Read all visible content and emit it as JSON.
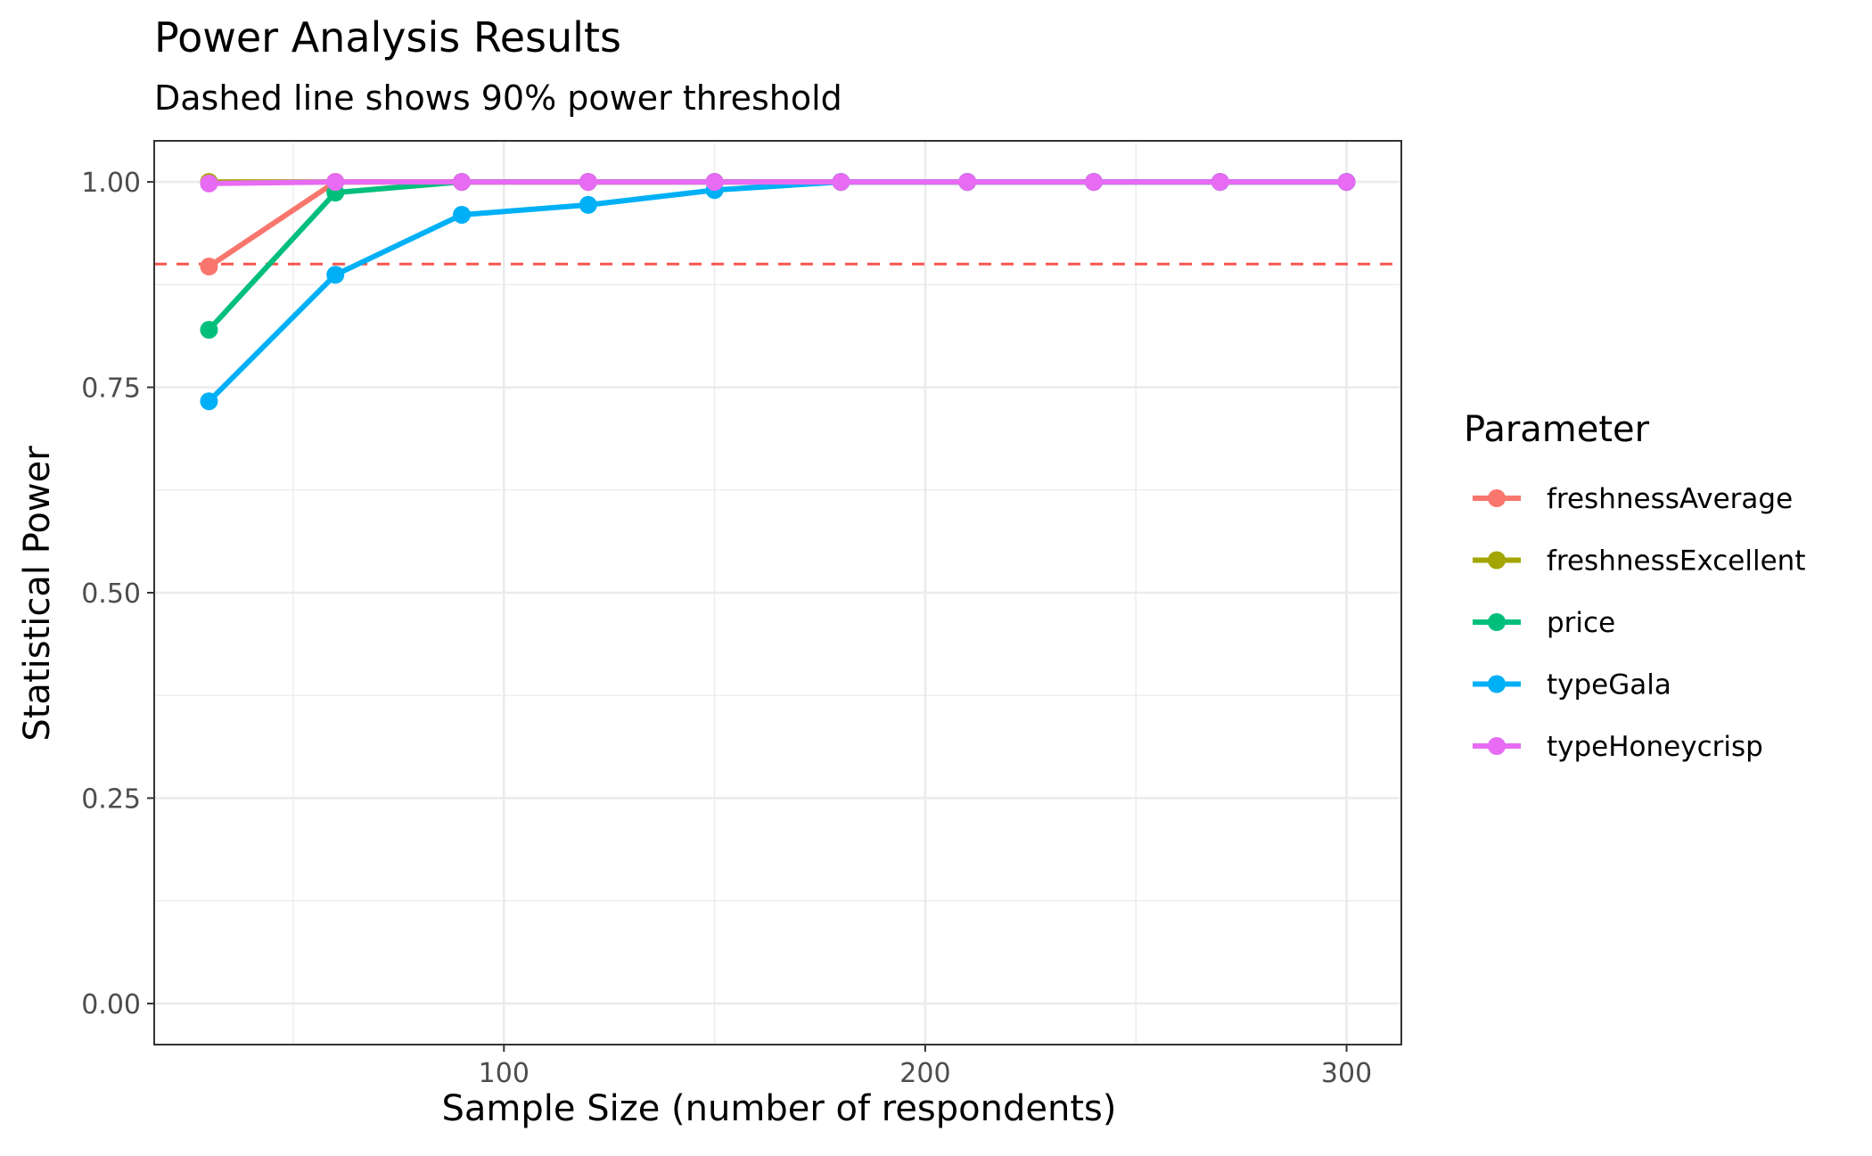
{
  "chart_data": {
    "type": "line",
    "title": "Power Analysis Results",
    "subtitle": "Dashed line shows 90% power threshold",
    "xlabel": "Sample Size (number of respondents)",
    "ylabel": "Statistical Power",
    "xlim": [
      17,
      313
    ],
    "ylim": [
      -0.05,
      1.05
    ],
    "x_ticks": [
      100,
      200,
      300
    ],
    "x_tick_labels": [
      "100",
      "200",
      "300"
    ],
    "y_ticks": [
      0,
      0.25,
      0.5,
      0.75,
      1.0
    ],
    "y_tick_labels": [
      "0.00",
      "0.25",
      "0.50",
      "0.75",
      "1.00"
    ],
    "grid": true,
    "threshold": {
      "value": 0.9,
      "color": "#F8554F",
      "style": "dashed"
    },
    "legend": {
      "title": "Parameter",
      "placement": "right"
    },
    "x": [
      30,
      60,
      90,
      120,
      150,
      180,
      210,
      240,
      270,
      300
    ],
    "series": [
      {
        "name": "freshnessAverage",
        "color": "#F8766D",
        "values": [
          0.897,
          1.0,
          1.0,
          1.0,
          1.0,
          1.0,
          1.0,
          1.0,
          1.0,
          1.0
        ]
      },
      {
        "name": "freshnessExcellent",
        "color": "#A3A500",
        "values": [
          1.0,
          1.0,
          1.0,
          1.0,
          1.0,
          1.0,
          1.0,
          1.0,
          1.0,
          1.0
        ]
      },
      {
        "name": "price",
        "color": "#00BF7D",
        "values": [
          0.82,
          0.987,
          1.0,
          1.0,
          1.0,
          1.0,
          1.0,
          1.0,
          1.0,
          1.0
        ]
      },
      {
        "name": "typeGala",
        "color": "#00B0F6",
        "values": [
          0.733,
          0.887,
          0.96,
          0.972,
          0.99,
          1.0,
          1.0,
          1.0,
          1.0,
          1.0
        ]
      },
      {
        "name": "typeHoneycrisp",
        "color": "#E76BF3",
        "values": [
          0.998,
          1.0,
          1.0,
          1.0,
          1.0,
          1.0,
          1.0,
          1.0,
          1.0,
          1.0
        ]
      }
    ]
  }
}
